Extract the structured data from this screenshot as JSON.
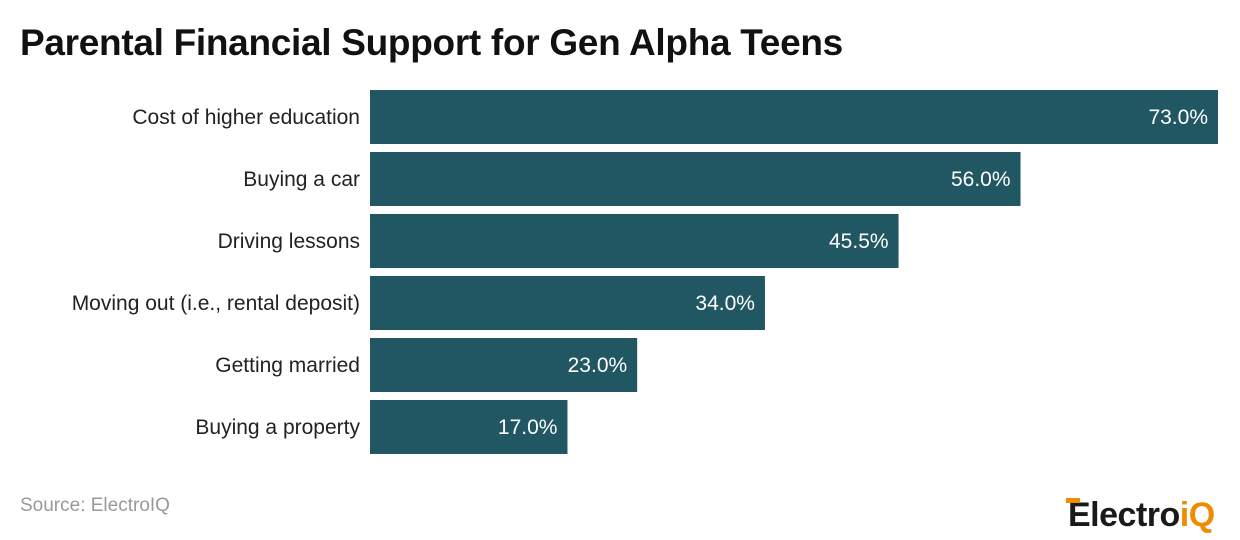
{
  "chart_data": {
    "type": "bar",
    "orientation": "horizontal",
    "title": "Parental Financial Support for Gen Alpha Teens",
    "categories": [
      "Cost of higher education",
      "Buying a car",
      "Driving lessons",
      "Moving out (i.e., rental deposit)",
      "Getting married",
      "Buying a property"
    ],
    "values": [
      73.0,
      56.0,
      45.5,
      34.0,
      23.0,
      17.0
    ],
    "data_labels": [
      "73.0%",
      "56.0%",
      "45.5%",
      "34.0%",
      "23.0%",
      "17.0%"
    ],
    "xlim": [
      0,
      73
    ],
    "grid": false,
    "bar_color": "#215763"
  },
  "source": "Source: ElectroIQ",
  "logo": {
    "text_main": "Electro",
    "text_accent": "iQ",
    "accent_color": "#f08c00"
  }
}
